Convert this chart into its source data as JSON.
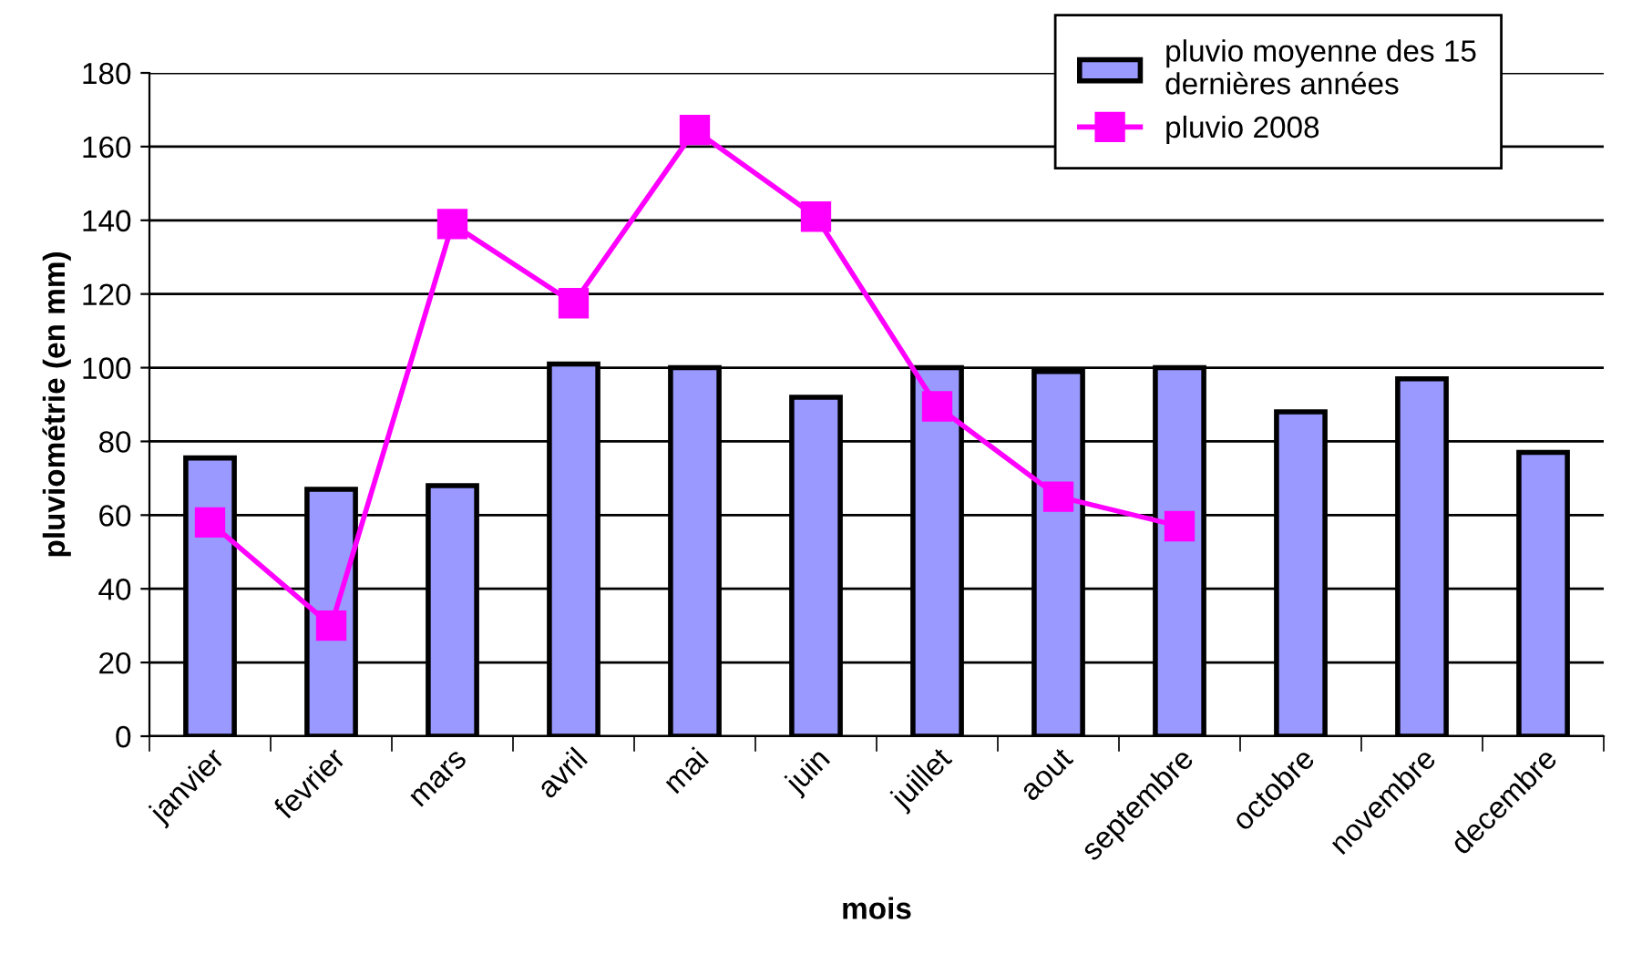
{
  "chart_data": {
    "type": "bar",
    "xlabel": "mois",
    "ylabel": "pluviométrie (en mm)",
    "categories": [
      "janvier",
      "fevrier",
      "mars",
      "avril",
      "mai",
      "juin",
      "juillet",
      "aout",
      "septembre",
      "octobre",
      "novembre",
      "decembre"
    ],
    "series": [
      {
        "name": "pluvio moyenne des 15 dernières années",
        "color": "#9999ff",
        "values": [
          75.5,
          67,
          68,
          101,
          100,
          92,
          100,
          99,
          100,
          88,
          97,
          77
        ]
      },
      {
        "name": "pluvio 2008",
        "type": "line",
        "color": "#ff00ff",
        "marker": "square",
        "values": [
          58,
          30,
          139,
          117.5,
          164.5,
          141,
          89.5,
          65,
          57,
          null,
          null,
          null
        ]
      }
    ],
    "ylim": [
      0,
      180
    ],
    "yticks": [
      0,
      20,
      40,
      60,
      80,
      100,
      120,
      140,
      160,
      180
    ],
    "grid": "y",
    "legend": "top right"
  }
}
